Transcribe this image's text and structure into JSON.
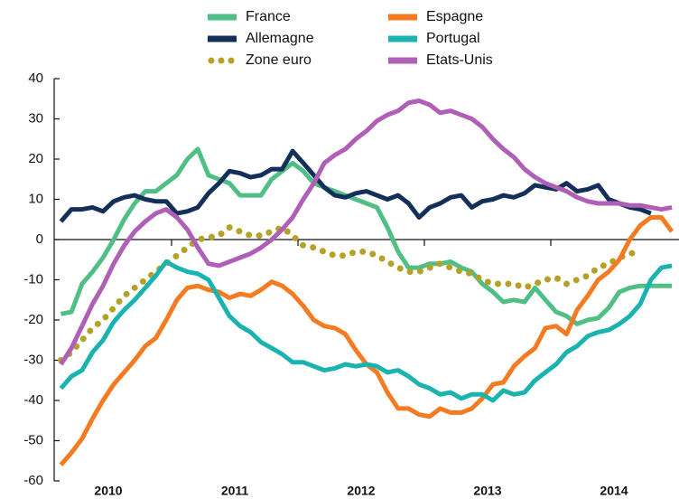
{
  "chart_data": {
    "type": "line",
    "x": [
      2010.125,
      2010.208,
      2010.292,
      2010.375,
      2010.458,
      2010.542,
      2010.625,
      2010.708,
      2010.792,
      2010.875,
      2010.958,
      2011.042,
      2011.125,
      2011.208,
      2011.292,
      2011.375,
      2011.458,
      2011.542,
      2011.625,
      2011.708,
      2011.792,
      2011.875,
      2011.958,
      2012.042,
      2012.125,
      2012.208,
      2012.292,
      2012.375,
      2012.458,
      2012.542,
      2012.625,
      2012.708,
      2012.792,
      2012.875,
      2012.958,
      2013.042,
      2013.125,
      2013.208,
      2013.292,
      2013.375,
      2013.458,
      2013.542,
      2013.625,
      2013.708,
      2013.792,
      2013.875,
      2013.958,
      2014.042,
      2014.125,
      2014.208,
      2014.292,
      2014.375,
      2014.458,
      2014.542,
      2014.625,
      2014.708,
      2014.792,
      2014.875,
      2014.958
    ],
    "xlim": [
      2010,
      2015
    ],
    "xticks": [
      {
        "value": 2010.5,
        "label": "2010"
      },
      {
        "value": 2011.5,
        "label": "2011"
      },
      {
        "value": 2012.5,
        "label": "2012"
      },
      {
        "value": 2013.5,
        "label": "2013"
      },
      {
        "value": 2014.5,
        "label": "2014"
      }
    ],
    "ylim": [
      -60,
      40
    ],
    "yticks": [
      -60,
      -50,
      -40,
      -30,
      -20,
      -10,
      0,
      10,
      20,
      30,
      40
    ],
    "grid": false,
    "series": [
      {
        "name": "France",
        "color": "#4fbf85",
        "style": "solid",
        "values": [
          -18.5,
          -18,
          -11,
          -8,
          -4.5,
          0,
          5,
          9,
          12,
          12,
          14,
          16,
          20,
          22.5,
          16,
          15,
          14,
          11,
          11,
          11,
          15,
          17,
          19,
          17,
          14,
          13,
          12,
          11,
          10,
          9,
          8,
          3,
          -3,
          -7,
          -7,
          -6,
          -6,
          -5.5,
          -7,
          -8,
          -11,
          -13,
          -15.5,
          -15,
          -15.5,
          -12,
          -15,
          -18,
          -19,
          -21,
          -20,
          -19.5,
          -17,
          -13,
          -12,
          -11.5,
          -11.5,
          -11.5,
          -11.5
        ]
      },
      {
        "name": "Allemagne",
        "color": "#14305a",
        "style": "solid",
        "values": [
          4.5,
          7.5,
          7.5,
          8,
          7,
          9.5,
          10.5,
          11,
          10,
          9.5,
          9.5,
          6.5,
          7,
          8,
          11.5,
          14,
          17,
          16.5,
          15.5,
          16,
          17.5,
          17.5,
          22,
          19,
          16,
          13,
          11,
          10.5,
          11.5,
          12,
          11,
          10,
          11,
          9,
          5.5,
          8,
          9,
          10.5,
          11,
          8,
          9.5,
          10,
          11,
          10.5,
          11.5,
          13.5,
          13,
          12.5,
          14,
          12,
          12.5,
          13.5,
          10,
          9,
          8,
          7.5,
          6.5,
          null,
          null
        ]
      },
      {
        "name": "Zone euro",
        "color": "#b5a126",
        "style": "dotted",
        "values": [
          -30,
          -28,
          -25,
          -22,
          -20,
          -17,
          -14,
          -12,
          -10,
          -8,
          -6,
          -4,
          -2,
          0,
          0.5,
          1,
          3,
          2,
          1,
          1,
          2,
          3,
          1,
          -1.5,
          -2,
          -3,
          -4,
          -4,
          -3,
          -3,
          -4,
          -5.5,
          -7,
          -8,
          -8,
          -7,
          -6,
          -7,
          -8,
          -8.5,
          -10,
          -11,
          -11,
          -11,
          -12,
          -11,
          -10,
          -9.5,
          -11,
          -10,
          -9,
          -7,
          -6,
          -4.5,
          -3.5,
          -3,
          null,
          null,
          null
        ]
      },
      {
        "name": "Espagne",
        "color": "#f47b22",
        "style": "solid",
        "values": [
          -56,
          -53,
          -49.5,
          -44.5,
          -40,
          -36,
          -33,
          -30,
          -26.5,
          -24.5,
          -20,
          -15,
          -12,
          -11.5,
          -12.5,
          -13,
          -14.5,
          -13.5,
          -14,
          -12.5,
          -10.5,
          -11.5,
          -13.5,
          -16.5,
          -20,
          -21.5,
          -22,
          -23.5,
          -27.5,
          -31,
          -33,
          -38,
          -42,
          -42,
          -43.5,
          -44,
          -42,
          -43,
          -43,
          -42,
          -39.5,
          -36,
          -35.5,
          -31.5,
          -29,
          -27,
          -22,
          -21.5,
          -23.5,
          -17.5,
          -14,
          -10,
          -8,
          -5,
          0,
          3.5,
          5.5,
          5.5,
          2
        ]
      },
      {
        "name": "Portugal",
        "color": "#1bb3b0",
        "style": "solid",
        "values": [
          -37,
          -34,
          -32.5,
          -28,
          -25,
          -20.5,
          -17.5,
          -15,
          -12,
          -9,
          -5.5,
          -7,
          -8,
          -8.5,
          -10,
          -14.5,
          -19,
          -21.5,
          -23,
          -25.5,
          -27,
          -28.5,
          -30.5,
          -30.5,
          -31.5,
          -32.5,
          -32,
          -31,
          -31.5,
          -31,
          -31.5,
          -33,
          -32.5,
          -34,
          -36,
          -37,
          -38.5,
          -38,
          -39.5,
          -38.5,
          -38.5,
          -40,
          -37.5,
          -38.5,
          -38,
          -35,
          -33,
          -31,
          -28,
          -26.5,
          -24,
          -23,
          -22.5,
          -21,
          -19,
          -16,
          -10,
          -7,
          -6.5
        ]
      },
      {
        "name": "Etats-Unis",
        "color": "#b05fb6",
        "style": "solid",
        "values": [
          -31,
          -27,
          -21.5,
          -16,
          -11.5,
          -6,
          -1.5,
          2,
          4.5,
          6.5,
          7.5,
          5.5,
          2.5,
          -2,
          -6,
          -6.5,
          -5.5,
          -4.5,
          -3.5,
          -2,
          0,
          2.5,
          5.5,
          10,
          14,
          19,
          21,
          22.5,
          25,
          27,
          29.5,
          31,
          32,
          34,
          34.5,
          33.5,
          31.5,
          32,
          31,
          30,
          28,
          25,
          22.5,
          20.5,
          17.5,
          15.5,
          14,
          13,
          12,
          10.5,
          9.5,
          9,
          9,
          9,
          8.5,
          8.5,
          8,
          7.5,
          8
        ]
      }
    ]
  }
}
